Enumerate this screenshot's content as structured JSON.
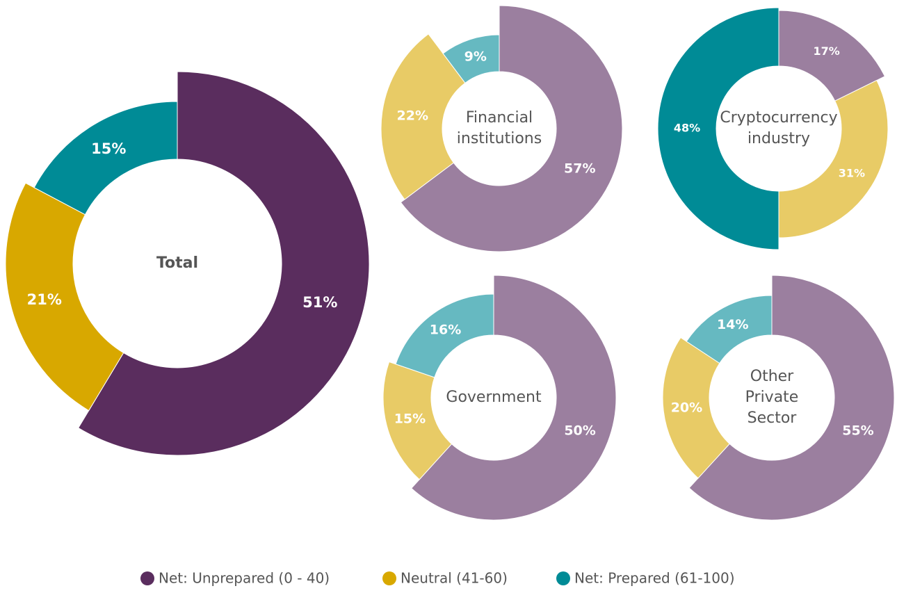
{
  "chart_data": [
    {
      "type": "pie",
      "title_lines": [
        "Total"
      ],
      "values": [
        51,
        21,
        15
      ],
      "value_labels": [
        "51%",
        "21%",
        "15%"
      ],
      "colors": [
        "#5a2d5e",
        "#d8a800",
        "#008b96"
      ]
    },
    {
      "type": "pie",
      "title_lines": [
        "Financial",
        "institutions"
      ],
      "values": [
        57,
        22,
        9
      ],
      "value_labels": [
        "57%",
        "22%",
        "9%"
      ],
      "colors": [
        "#9b7f9f",
        "#e8cb66",
        "#66b9c1"
      ]
    },
    {
      "type": "pie",
      "title_lines": [
        "Cryptocurrency",
        "industry"
      ],
      "values": [
        17,
        31,
        48
      ],
      "value_labels": [
        "17%",
        "31%",
        "48%"
      ],
      "colors": [
        "#9b7f9f",
        "#e8cb66",
        "#008b96"
      ]
    },
    {
      "type": "pie",
      "title_lines": [
        "Government"
      ],
      "values": [
        50,
        15,
        16
      ],
      "value_labels": [
        "50%",
        "15%",
        "16%"
      ],
      "colors": [
        "#9b7f9f",
        "#e8cb66",
        "#66b9c1"
      ]
    },
    {
      "type": "pie",
      "title_lines": [
        "Other",
        "Private",
        "Sector"
      ],
      "values": [
        55,
        20,
        14
      ],
      "value_labels": [
        "55%",
        "20%",
        "14%"
      ],
      "colors": [
        "#9b7f9f",
        "#e8cb66",
        "#66b9c1"
      ]
    }
  ],
  "legend": {
    "categories": [
      "Net: Unprepared (0 - 40)",
      "Neutral (41-60)",
      "Net: Prepared (61-100)"
    ],
    "colors": [
      "#5a2d5e",
      "#d8a800",
      "#008b96"
    ]
  }
}
